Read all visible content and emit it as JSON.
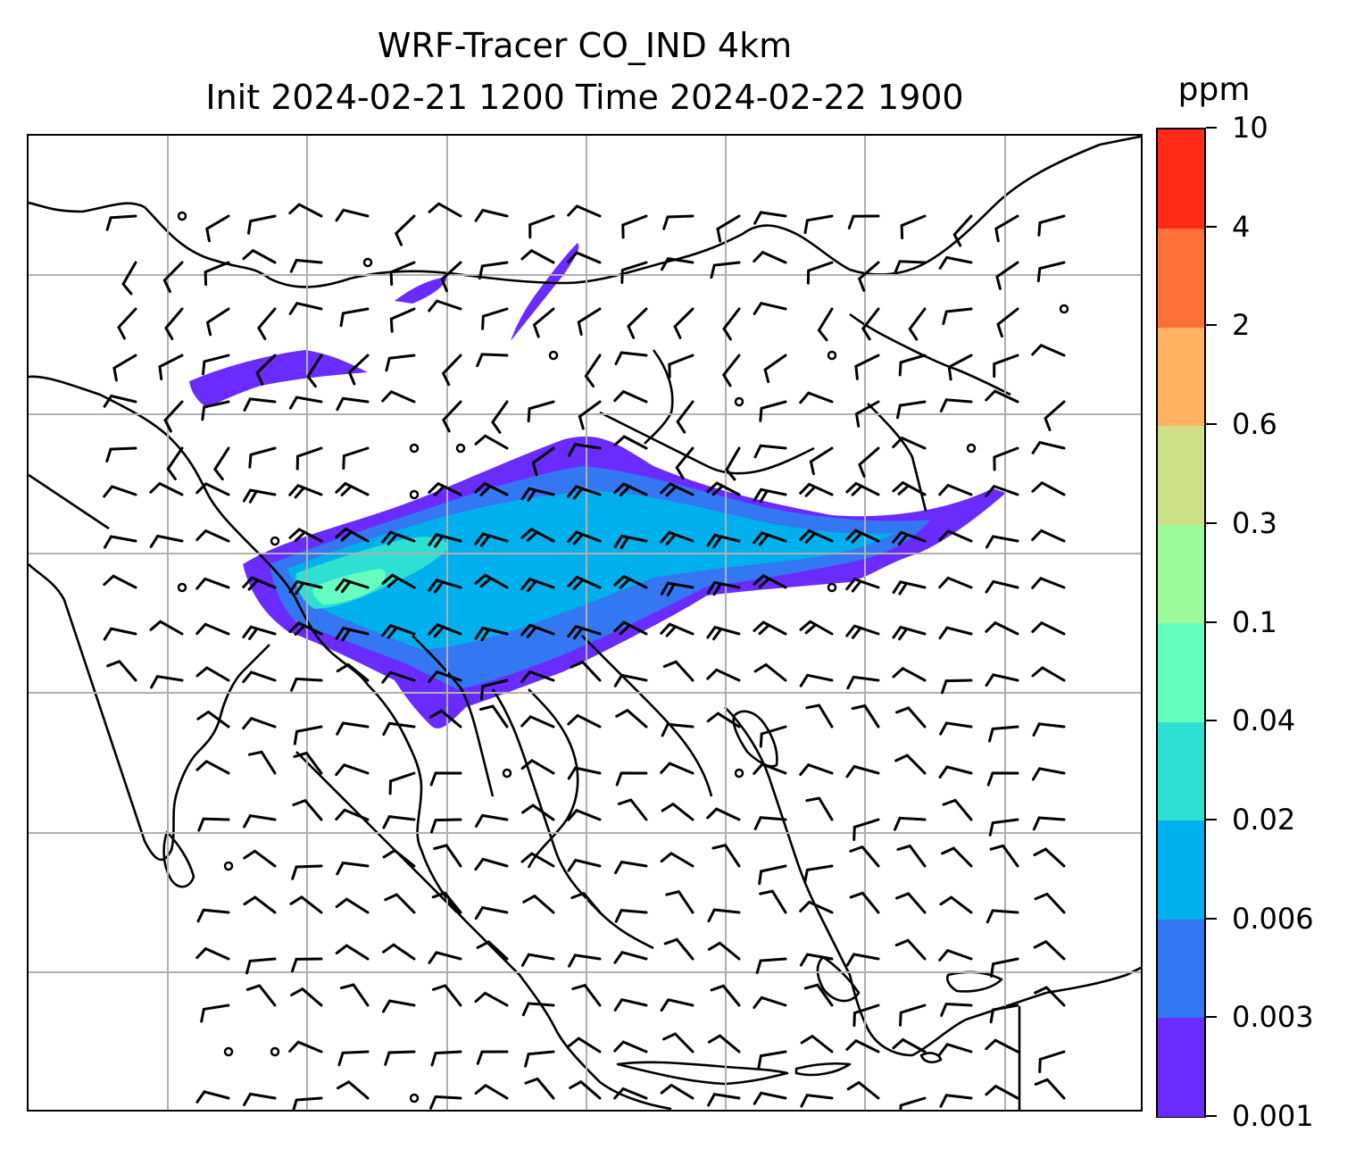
{
  "title": {
    "line1": "WRF-Tracer CO_IND 4km",
    "line2": "Init 2024-02-21 1200 Time 2024-02-22 1900"
  },
  "colorbar": {
    "unit": "ppm",
    "levels": [
      "0.001",
      "0.003",
      "0.006",
      "0.02",
      "0.04",
      "0.1",
      "0.3",
      "0.6",
      "2",
      "4",
      "10"
    ],
    "colors": [
      "#6a2bff",
      "#3377f2",
      "#00b0ec",
      "#2ee0d2",
      "#66ffc0",
      "#9cfa9a",
      "#cde088",
      "#ffb060",
      "#ff7038",
      "#ff2a18"
    ]
  },
  "map": {
    "gridlines": true,
    "gridline_color": "#b0b0b0",
    "coastline_color": "#000000",
    "features": [
      "coastlines",
      "country borders",
      "wind barbs",
      "CO tracer concentration"
    ]
  },
  "plume_levels": {
    "outer": "0.001",
    "mid": "0.003",
    "core": "0.006",
    "peak": "0.02",
    "max": "0.04"
  }
}
